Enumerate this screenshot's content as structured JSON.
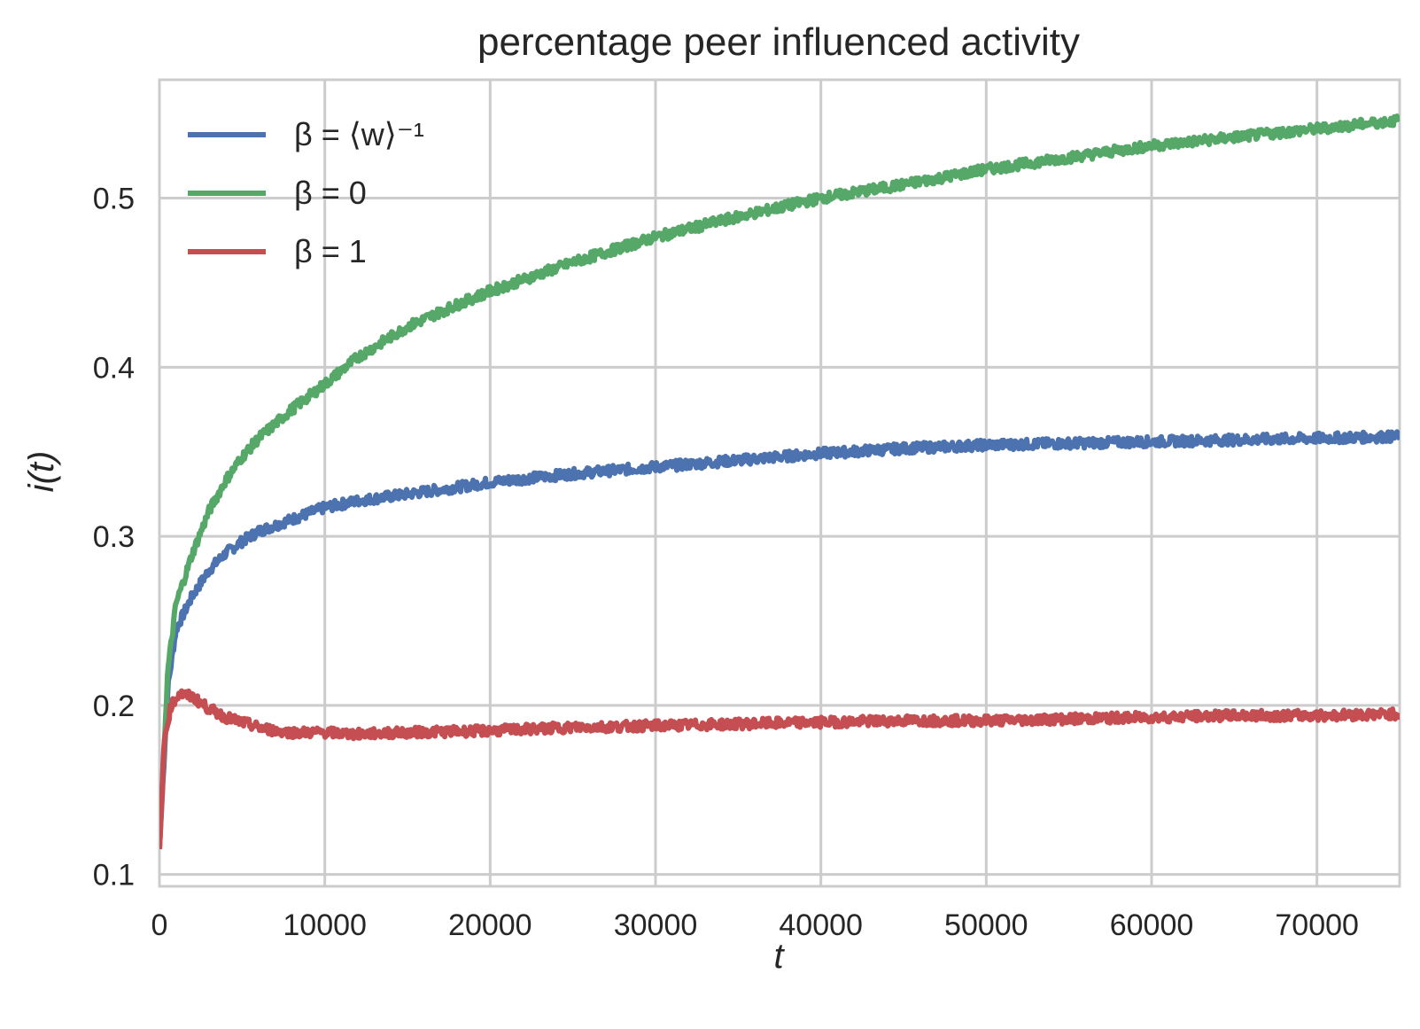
{
  "chart_data": {
    "type": "line",
    "title": "percentage peer influenced activity",
    "xlabel": "t",
    "ylabel": "i(t)",
    "xlim": [
      0,
      75000
    ],
    "ylim": [
      0.093,
      0.57
    ],
    "xticks": [
      0,
      10000,
      20000,
      30000,
      40000,
      50000,
      60000,
      70000
    ],
    "xtick_labels": [
      "0",
      "10000",
      "20000",
      "30000",
      "40000",
      "50000",
      "60000",
      "70000"
    ],
    "yticks": [
      0.1,
      0.2,
      0.3,
      0.4,
      0.5
    ],
    "ytick_labels": [
      "0.1",
      "0.2",
      "0.3",
      "0.4",
      "0.5"
    ],
    "grid": true,
    "legend_position": "top-left",
    "series": [
      {
        "name": "β = ⟨w⟩⁻¹",
        "color": "#4c72b0",
        "x": [
          0,
          500,
          1000,
          2000,
          3000,
          4000,
          5000,
          6000,
          8000,
          10000,
          12000,
          15000,
          18000,
          20000,
          25000,
          30000,
          35000,
          40000,
          45000,
          50000,
          55000,
          60000,
          65000,
          70000,
          75000
        ],
        "y": [
          0.115,
          0.21,
          0.245,
          0.265,
          0.28,
          0.29,
          0.297,
          0.303,
          0.31,
          0.317,
          0.321,
          0.325,
          0.329,
          0.332,
          0.337,
          0.341,
          0.345,
          0.349,
          0.352,
          0.354,
          0.355,
          0.356,
          0.357,
          0.358,
          0.359
        ]
      },
      {
        "name": "β = 0",
        "color": "#55a868",
        "x": [
          0,
          500,
          1000,
          2000,
          3000,
          4000,
          5000,
          6000,
          8000,
          10000,
          12000,
          15000,
          18000,
          20000,
          25000,
          30000,
          35000,
          40000,
          45000,
          50000,
          55000,
          60000,
          65000,
          70000,
          75000
        ],
        "y": [
          0.115,
          0.22,
          0.26,
          0.29,
          0.315,
          0.333,
          0.347,
          0.358,
          0.375,
          0.39,
          0.406,
          0.424,
          0.437,
          0.445,
          0.462,
          0.477,
          0.489,
          0.5,
          0.508,
          0.517,
          0.524,
          0.531,
          0.536,
          0.541,
          0.546
        ]
      },
      {
        "name": "β = 1",
        "color": "#c44e52",
        "x": [
          0,
          300,
          700,
          1200,
          2000,
          3000,
          4000,
          5000,
          6000,
          7000,
          8000,
          10000,
          12000,
          15000,
          20000,
          25000,
          30000,
          35000,
          40000,
          45000,
          50000,
          55000,
          60000,
          65000,
          70000,
          75000
        ],
        "y": [
          0.115,
          0.18,
          0.2,
          0.207,
          0.205,
          0.198,
          0.193,
          0.19,
          0.187,
          0.185,
          0.184,
          0.184,
          0.183,
          0.184,
          0.185,
          0.187,
          0.188,
          0.189,
          0.19,
          0.191,
          0.191,
          0.192,
          0.193,
          0.194,
          0.194,
          0.195
        ]
      }
    ]
  }
}
